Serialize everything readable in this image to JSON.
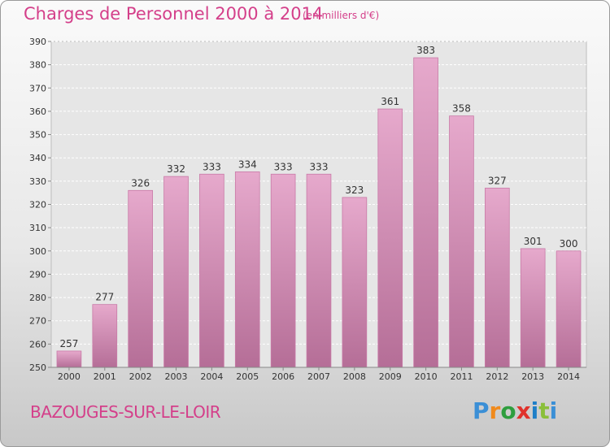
{
  "header": {
    "title": "Charges de Personnel 2000 à 2014",
    "subtitle": "(en milliers d'€)"
  },
  "footer": {
    "commune": "BAZOUGES-SUR-LE-LOIR",
    "logo_letters": [
      "P",
      "r",
      "o",
      "x",
      "i",
      "t",
      "i"
    ]
  },
  "colors": {
    "bar": "#d48fb6",
    "accent": "#d43f8a"
  },
  "chart_data": {
    "type": "bar",
    "categories": [
      "2000",
      "2001",
      "2002",
      "2003",
      "2004",
      "2005",
      "2006",
      "2007",
      "2008",
      "2009",
      "2010",
      "2011",
      "2012",
      "2013",
      "2014"
    ],
    "values": [
      257,
      277,
      326,
      332,
      333,
      334,
      333,
      333,
      323,
      361,
      383,
      358,
      327,
      301,
      300
    ],
    "ylim": [
      250,
      390
    ],
    "yticks": [
      250,
      260,
      270,
      280,
      290,
      300,
      310,
      320,
      330,
      340,
      350,
      360,
      370,
      380,
      390
    ],
    "grid": true
  }
}
